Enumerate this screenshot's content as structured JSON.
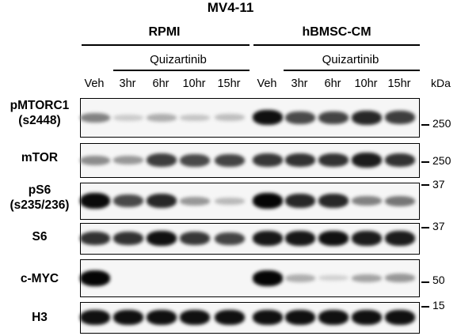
{
  "figure": {
    "title": "MV4-11",
    "conditions": [
      "RPMI",
      "hBMSC-CM"
    ],
    "treatment_labels": [
      "Quizartinib",
      "Quizartinib"
    ],
    "lanes": [
      "Veh",
      "3hr",
      "6hr",
      "10hr",
      "15hr",
      "Veh",
      "3hr",
      "6hr",
      "10hr",
      "15hr"
    ],
    "unit_label": "kDa",
    "blots": [
      {
        "label": "pMTORC1\n(s2448)",
        "markers": [
          "250"
        ],
        "intensities": [
          0.45,
          0.12,
          0.25,
          0.15,
          0.18,
          0.95,
          0.7,
          0.72,
          0.85,
          0.75
        ]
      },
      {
        "label": "mTOR",
        "markers": [
          "250"
        ],
        "intensities": [
          0.4,
          0.35,
          0.75,
          0.7,
          0.72,
          0.78,
          0.8,
          0.8,
          0.9,
          0.8
        ]
      },
      {
        "label": "pS6\n(s235/236)",
        "markers": [
          "37"
        ],
        "intensities": [
          0.98,
          0.7,
          0.85,
          0.35,
          0.2,
          1.0,
          0.85,
          0.85,
          0.45,
          0.5
        ]
      },
      {
        "label": "S6",
        "markers": [
          "37"
        ],
        "intensities": [
          0.8,
          0.8,
          0.95,
          0.78,
          0.72,
          0.92,
          0.92,
          0.95,
          0.9,
          0.9
        ]
      },
      {
        "label": "c-MYC",
        "markers": [
          "50"
        ],
        "intensities": [
          1.0,
          0.0,
          0.0,
          0.0,
          0.0,
          1.0,
          0.25,
          0.1,
          0.3,
          0.35
        ]
      },
      {
        "label": "H3",
        "markers": [
          "15"
        ],
        "intensities": [
          0.95,
          0.95,
          0.95,
          0.95,
          0.95,
          0.95,
          0.95,
          0.95,
          0.95,
          0.95
        ]
      }
    ]
  }
}
